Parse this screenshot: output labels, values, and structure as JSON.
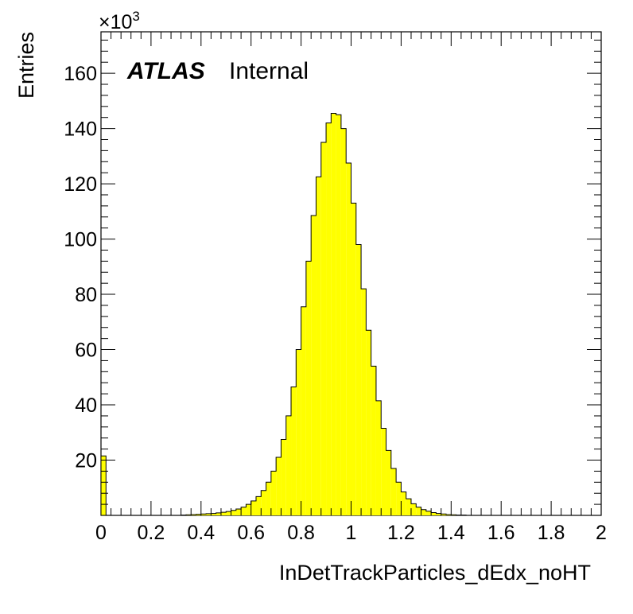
{
  "chart_data": {
    "type": "bar",
    "xlabel": "InDetTrackParticles_dEdx_noHT",
    "ylabel": "Entries",
    "y_multiplier": "×10",
    "y_multiplier_exponent": "3",
    "label": {
      "experiment": "ATLAS",
      "status": "Internal"
    },
    "xlim": [
      0,
      2
    ],
    "ylim": [
      0,
      175
    ],
    "bin_width": 0.02,
    "x_ticks": [
      "0",
      "0.2",
      "0.4",
      "0.6",
      "0.8",
      "1",
      "1.2",
      "1.4",
      "1.6",
      "1.8",
      "2"
    ],
    "y_ticks": [
      "20",
      "40",
      "60",
      "80",
      "100",
      "120",
      "140",
      "160"
    ],
    "x_tick_values": [
      0,
      0.2,
      0.4,
      0.6,
      0.8,
      1.0,
      1.2,
      1.4,
      1.6,
      1.8,
      2.0
    ],
    "y_tick_values": [
      20,
      40,
      60,
      80,
      100,
      120,
      140,
      160
    ],
    "bins_low_edge": [
      0.0,
      0.02,
      0.04,
      0.06,
      0.08,
      0.1,
      0.12,
      0.14,
      0.16,
      0.18,
      0.2,
      0.22,
      0.24,
      0.26,
      0.28,
      0.3,
      0.32,
      0.34,
      0.36,
      0.38,
      0.4,
      0.42,
      0.44,
      0.46,
      0.48,
      0.5,
      0.52,
      0.54,
      0.56,
      0.58,
      0.6,
      0.62,
      0.64,
      0.66,
      0.68,
      0.7,
      0.72,
      0.74,
      0.76,
      0.78,
      0.8,
      0.82,
      0.84,
      0.86,
      0.88,
      0.9,
      0.92,
      0.94,
      0.96,
      0.98,
      1.0,
      1.02,
      1.04,
      1.06,
      1.08,
      1.1,
      1.12,
      1.14,
      1.16,
      1.18,
      1.2,
      1.22,
      1.24,
      1.26,
      1.28,
      1.3,
      1.32,
      1.34,
      1.36,
      1.38,
      1.4,
      1.42,
      1.44,
      1.46,
      1.48,
      1.5,
      1.52,
      1.54,
      1.56,
      1.58,
      1.6,
      1.62,
      1.64,
      1.66,
      1.68,
      1.7,
      1.72,
      1.74,
      1.76,
      1.78,
      1.8,
      1.82,
      1.84,
      1.86,
      1.88,
      1.9,
      1.92,
      1.94,
      1.96,
      1.98
    ],
    "values": [
      21.5,
      0,
      0,
      0,
      0,
      0,
      0,
      0,
      0,
      0,
      0,
      0,
      0,
      0,
      0,
      0,
      0.1,
      0.2,
      0.3,
      0.4,
      0.5,
      0.6,
      0.7,
      0.9,
      1.1,
      1.4,
      1.8,
      2.3,
      3.0,
      4.0,
      5.2,
      6.8,
      9.0,
      12.0,
      16.0,
      21.0,
      27.5,
      36.0,
      46.5,
      60.0,
      75.5,
      92.0,
      108.5,
      122.5,
      135.0,
      142.0,
      145.5,
      145.0,
      140.0,
      127.5,
      113.0,
      98.0,
      82.0,
      67.0,
      54.0,
      41.5,
      31.5,
      23.5,
      17.0,
      12.0,
      8.5,
      6.0,
      4.2,
      3.0,
      2.1,
      1.5,
      1.0,
      0.7,
      0.5,
      0.3,
      0.2,
      0.1,
      0.1,
      0,
      0,
      0,
      0,
      0,
      0,
      0,
      0,
      0,
      0,
      0,
      0,
      0,
      0,
      0,
      0,
      0,
      0,
      0,
      0,
      0,
      0,
      0,
      0,
      0,
      0,
      0
    ],
    "fill_color": "#ffff00",
    "line_color": "#000000"
  }
}
